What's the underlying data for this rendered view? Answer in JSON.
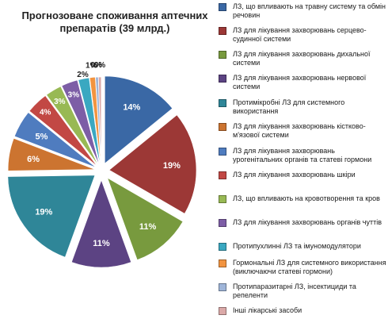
{
  "chart_data": {
    "type": "pie",
    "title": "Прогнозоване споживання аптечних препаратів (39 млрд.)",
    "legend_position": "right",
    "slices": [
      {
        "label": "ЛЗ, що впливають на травну систему та обмін речовин",
        "value": 14,
        "value_label": "14%",
        "color": "#3a68a5"
      },
      {
        "label": "ЛЗ для лікування захворювань серцево-судинної системи",
        "value": 19,
        "value_label": "19%",
        "color": "#9c3836"
      },
      {
        "label": "ЛЗ для лікування захворювань дихальної системи",
        "value": 11,
        "value_label": "11%",
        "color": "#789a3e"
      },
      {
        "label": "ЛЗ для лікування захворювань нервової системи",
        "value": 11,
        "value_label": "11%",
        "color": "#5c4383"
      },
      {
        "label": "Протимікробні ЛЗ для системного використання",
        "value": 19,
        "value_label": "19%",
        "color": "#2f8698"
      },
      {
        "label": "ЛЗ для лікування захворювань кістково-м'язової системи",
        "value": 6,
        "value_label": "6%",
        "color": "#cc7430"
      },
      {
        "label": "ЛЗ для лікування захворювань урогенітальних органів та статеві гормони",
        "value": 5,
        "value_label": "5%",
        "color": "#4f7cbf"
      },
      {
        "label": "ЛЗ для лікування захворювань шкіри",
        "value": 4,
        "value_label": "4%",
        "color": "#c24844"
      },
      {
        "label": "ЛЗ, що впливають на кровотворення та кров",
        "value": 3,
        "value_label": "3%",
        "color": "#98b954"
      },
      {
        "label": "ЛЗ для лікування захворювань органів чуттів",
        "value": 3,
        "value_label": "3%",
        "color": "#7d5ea6"
      },
      {
        "label": "Протипухлинні ЛЗ та імуномодулятори",
        "value": 2,
        "value_label": "2%",
        "color": "#3aa8c1"
      },
      {
        "label": "Гормональні ЛЗ для системного використання (виключаючи статеві гормони)",
        "value": 1,
        "value_label": "1%",
        "color": "#f29440"
      },
      {
        "label": "Протипаразитарні ЛЗ, інсектициди та репеленти",
        "value": 0.5,
        "value_label": "0%",
        "color": "#9fb5d9"
      },
      {
        "label": "Інші лікарські засоби",
        "value": 0.5,
        "value_label": "0%",
        "color": "#dba9a8"
      }
    ]
  }
}
